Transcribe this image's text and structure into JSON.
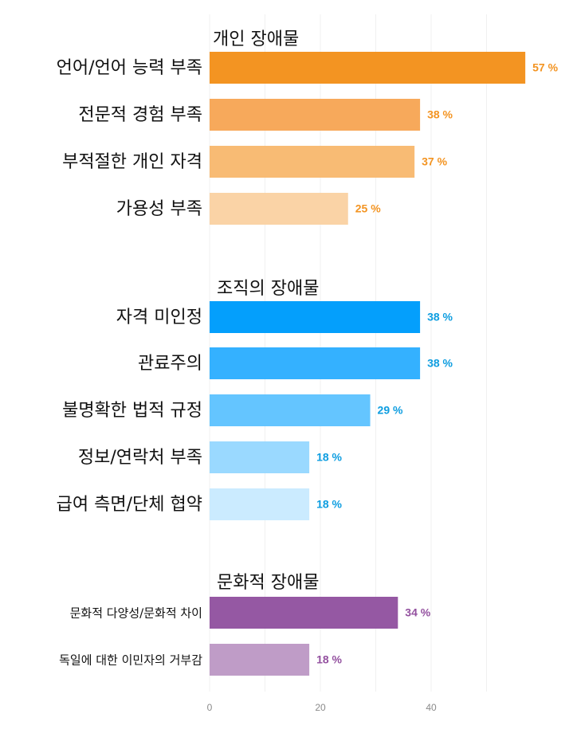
{
  "chart_data": {
    "type": "bar",
    "orientation": "horizontal",
    "x_ticks": [
      0,
      20,
      40
    ],
    "xlim": [
      0,
      57
    ],
    "grid": true,
    "value_suffix": " %",
    "groups": [
      {
        "title": "개인 장애물",
        "color": "#f39422",
        "categories": [
          "언어/언어 능력 부족",
          "전문적 경험 부족",
          "부적절한 개인 자격",
          "가용성 부족"
        ],
        "values": [
          57,
          38,
          37,
          25
        ],
        "bar_colors": [
          "#f39422",
          "#f7a95b",
          "#f8bb74",
          "#fad3a6"
        ]
      },
      {
        "title": "조직의 장애물",
        "color": "#0d9de0",
        "categories": [
          "자격 미인정",
          "관료주의",
          "불명확한 법적 규정",
          "정보/연락처 부족",
          "급여 측면/단체 협약"
        ],
        "values": [
          38,
          38,
          29,
          18,
          18
        ],
        "bar_colors": [
          "#049ffc",
          "#34b1ff",
          "#64c5ff",
          "#9ad9ff",
          "#cbebff"
        ]
      },
      {
        "title": "문화적 장애물",
        "color": "#93509f",
        "categories": [
          "문화적 다양성/문화적 차이",
          "독일에 대한 이민자의 거부감"
        ],
        "values": [
          34,
          18
        ],
        "bar_colors": [
          "#9558a3",
          "#bf9cc7"
        ]
      }
    ]
  }
}
